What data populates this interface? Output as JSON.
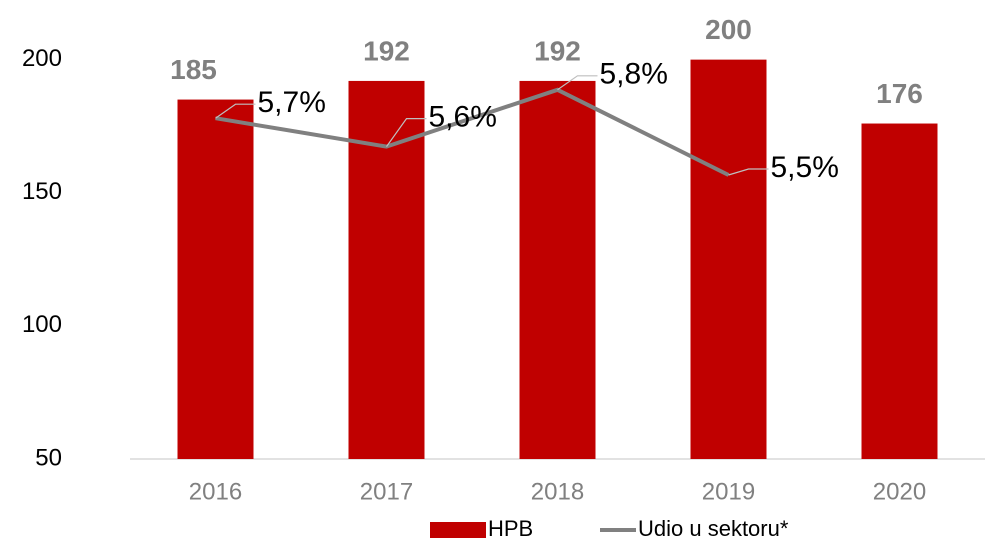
{
  "chart_data": {
    "type": "bar",
    "categories": [
      "2016",
      "2017",
      "2018",
      "2019",
      "2020"
    ],
    "series": [
      {
        "name": "HPB",
        "color": "#c00000",
        "values": [
          185,
          192,
          192,
          200,
          176
        ]
      },
      {
        "name": "Udio u sektoru*",
        "type": "line",
        "axis": "y2",
        "color": "#808080",
        "values": [
          5.7,
          5.6,
          5.8,
          5.5,
          null
        ],
        "value_labels": [
          "5,7%",
          "5,6%",
          "5,8%",
          "5,5%",
          null
        ]
      }
    ],
    "ylim": [
      50,
      210
    ],
    "yticks": [
      50,
      100,
      150,
      200
    ],
    "y2lim": [
      4.5,
      6.0
    ],
    "legend": "bottom"
  }
}
